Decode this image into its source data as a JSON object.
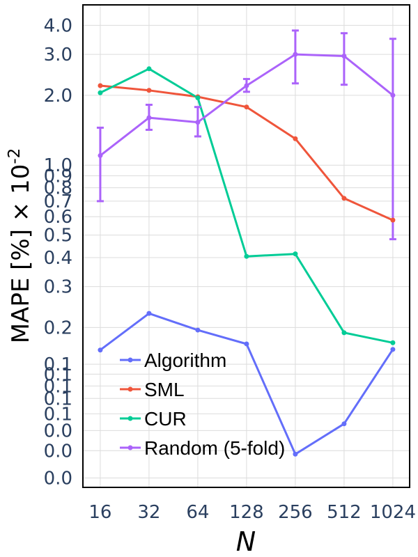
{
  "chart_data": {
    "type": "line",
    "xlabel": "N",
    "ylabel": "MAPE [%] × 10",
    "ylabel_exponent": "-2",
    "x_scale": "log2",
    "y_scale": "log",
    "x": [
      16,
      32,
      64,
      128,
      256,
      512,
      1024
    ],
    "xlim": [
      12.5,
      1300
    ],
    "ylim": [
      0.041,
      4.9
    ],
    "y_ticks": [
      {
        "value": 0.045,
        "label": "0.0"
      },
      {
        "value": 0.059,
        "label": "0.0"
      },
      {
        "value": 0.072,
        "label": "0.0"
      },
      {
        "value": 0.085,
        "label": "0.1"
      },
      {
        "value": 0.099,
        "label": "0.1"
      },
      {
        "value": 0.112,
        "label": "0.1"
      },
      {
        "value": 0.126,
        "label": "0.1"
      },
      {
        "value": 0.139,
        "label": "0.1"
      },
      {
        "value": 0.2,
        "label": "0.2"
      },
      {
        "value": 0.3,
        "label": "0.3"
      },
      {
        "value": 0.4,
        "label": "0.4"
      },
      {
        "value": 0.5,
        "label": "0.5"
      },
      {
        "value": 0.6,
        "label": "0.6"
      },
      {
        "value": 0.7,
        "label": "0.7"
      },
      {
        "value": 0.8,
        "label": "0.8"
      },
      {
        "value": 0.9,
        "label": "0.9"
      },
      {
        "value": 1.0,
        "label": "1.0"
      },
      {
        "value": 2.0,
        "label": "2.0"
      },
      {
        "value": 3.0,
        "label": "3.0"
      },
      {
        "value": 4.0,
        "label": "4.0"
      }
    ],
    "x_ticks": [
      "16",
      "32",
      "64",
      "128",
      "256",
      "512",
      "1024"
    ],
    "grid": true,
    "legend_position": "bottom-left",
    "series": [
      {
        "name": "Algorithm",
        "color": "#636efa",
        "values": [
          0.16,
          0.23,
          0.195,
          0.17,
          0.057,
          0.077,
          0.161
        ]
      },
      {
        "name": "SML",
        "color": "#ef553b",
        "values": [
          2.2,
          2.1,
          1.97,
          1.78,
          1.3,
          0.72,
          0.58
        ]
      },
      {
        "name": "CUR",
        "color": "#00cc96",
        "values": [
          2.05,
          2.6,
          1.95,
          0.405,
          0.415,
          0.19,
          0.172
        ]
      },
      {
        "name": "Random (5-fold)",
        "color": "#ab63fa",
        "values": [
          1.1,
          1.6,
          1.53,
          2.2,
          3.0,
          2.95,
          2.0
        ],
        "error_upper": [
          1.45,
          1.82,
          1.78,
          2.35,
          3.8,
          3.7,
          3.5
        ],
        "error_lower": [
          0.7,
          1.42,
          1.33,
          2.07,
          2.25,
          2.22,
          0.48
        ]
      }
    ]
  }
}
